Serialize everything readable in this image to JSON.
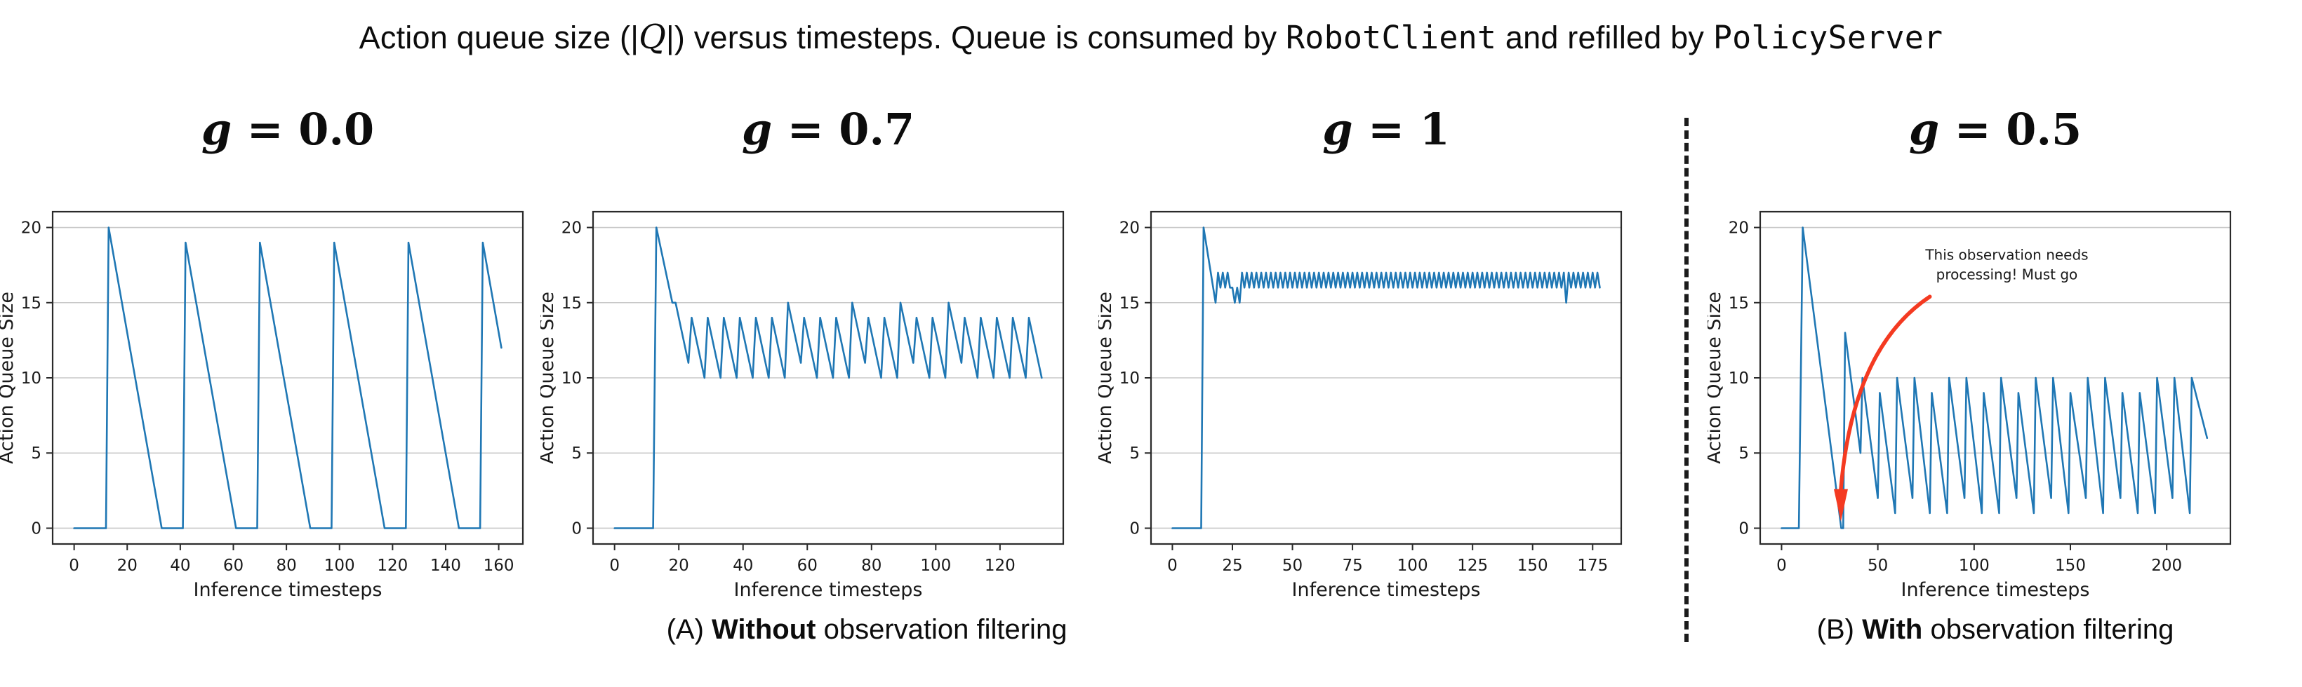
{
  "figure_title": {
    "segments": [
      {
        "t": "Action queue size (|",
        "style": "text"
      },
      {
        "t": "Q",
        "style": "script"
      },
      {
        "t": "|) versus timesteps. Queue is consumed by ",
        "style": "text"
      },
      {
        "t": "RobotClient",
        "style": "mono"
      },
      {
        "t": " and refilled by ",
        "style": "text"
      },
      {
        "t": "PolicyServer",
        "style": "mono"
      }
    ]
  },
  "captions": {
    "a": {
      "prefix": "(A) ",
      "bold": "Without",
      "rest": " observation filtering"
    },
    "b": {
      "prefix": "(B) ",
      "bold": "With",
      "rest": " observation filtering"
    }
  },
  "style": {
    "line_color": "#1f77b4",
    "grid_color": "#c9c9c9",
    "spine_color": "#2a2a2a",
    "annotation_color": "#f43a21"
  },
  "chart_data": [
    {
      "type": "line",
      "title": "g = 0.0",
      "title_var": "g",
      "title_eq": " = 0.0",
      "xlabel": "Inference timesteps",
      "ylabel": "Action Queue Size",
      "xlim": [
        -8.1,
        169.1
      ],
      "ylim": [
        -1.05,
        21.05
      ],
      "xticks": [
        0,
        20,
        40,
        60,
        80,
        100,
        120,
        140,
        160
      ],
      "yticks": [
        0,
        5,
        10,
        15,
        20
      ],
      "grid": "horizontal",
      "segments": [
        {
          "type": "points",
          "pts": [
            [
              0,
              0
            ],
            [
              12,
              0
            ],
            [
              13,
              20
            ],
            [
              33,
              0
            ],
            [
              41,
              0
            ],
            [
              42,
              19
            ],
            [
              61,
              0
            ],
            [
              69,
              0
            ],
            [
              70,
              19
            ],
            [
              89,
              0
            ],
            [
              97,
              0
            ],
            [
              98,
              19
            ],
            [
              117,
              0
            ],
            [
              125,
              0
            ],
            [
              126,
              19
            ],
            [
              145,
              0
            ],
            [
              153,
              0
            ],
            [
              154,
              19
            ],
            [
              161,
              12
            ]
          ]
        }
      ]
    },
    {
      "type": "line",
      "title": "g = 0.7",
      "title_var": "g",
      "title_eq": " = 0.7",
      "xlabel": "Inference timesteps",
      "ylabel": "Action Queue Size",
      "xlim": [
        -6.7,
        139.7
      ],
      "ylim": [
        -1.05,
        21.05
      ],
      "xticks": [
        0,
        20,
        40,
        60,
        80,
        100,
        120
      ],
      "yticks": [
        0,
        5,
        10,
        15,
        20
      ],
      "grid": "horizontal",
      "segments": [
        {
          "type": "points",
          "pts": [
            [
              0,
              0
            ],
            [
              12,
              0
            ],
            [
              13,
              20
            ],
            [
              18,
              15
            ],
            [
              19,
              15
            ],
            [
              23,
              11
            ],
            [
              24,
              14
            ],
            [
              28,
              10
            ],
            [
              29,
              14
            ],
            [
              33,
              10
            ],
            [
              34,
              14
            ],
            [
              38,
              10
            ],
            [
              39,
              14
            ],
            [
              43,
              10
            ],
            [
              44,
              14
            ],
            [
              48,
              10
            ],
            [
              49,
              14
            ],
            [
              53,
              10
            ],
            [
              54,
              15
            ],
            [
              58,
              11
            ],
            [
              59,
              14
            ],
            [
              63,
              10
            ],
            [
              64,
              14
            ],
            [
              68,
              10
            ],
            [
              69,
              14
            ],
            [
              73,
              10
            ],
            [
              74,
              15
            ],
            [
              78,
              11
            ],
            [
              79,
              14
            ],
            [
              83,
              10
            ],
            [
              84,
              14
            ],
            [
              88,
              10
            ],
            [
              89,
              15
            ],
            [
              93,
              11
            ],
            [
              94,
              14
            ],
            [
              98,
              10
            ],
            [
              99,
              14
            ],
            [
              103,
              10
            ],
            [
              104,
              15
            ],
            [
              108,
              11
            ],
            [
              109,
              14
            ],
            [
              113,
              10
            ],
            [
              114,
              14
            ],
            [
              118,
              10
            ],
            [
              119,
              14
            ],
            [
              123,
              10
            ],
            [
              124,
              14
            ],
            [
              128,
              10
            ],
            [
              129,
              14
            ],
            [
              133,
              10
            ]
          ]
        }
      ]
    },
    {
      "type": "line",
      "title": "g = 1",
      "title_var": "g",
      "title_eq": " = 1",
      "xlabel": "Inference timesteps",
      "ylabel": "Action Queue Size",
      "xlim": [
        -8.9,
        186.9
      ],
      "ylim": [
        -1.05,
        21.05
      ],
      "xticks": [
        0,
        25,
        50,
        75,
        100,
        125,
        150,
        175
      ],
      "yticks": [
        0,
        5,
        10,
        15,
        20
      ],
      "grid": "horizontal",
      "segments": [
        {
          "type": "points",
          "pts": [
            [
              0,
              0
            ],
            [
              12,
              0
            ],
            [
              13,
              20
            ],
            [
              18,
              15
            ]
          ]
        },
        {
          "type": "zigzag",
          "x0": 19,
          "x1": 24,
          "high": 17,
          "low": 16
        },
        {
          "type": "points",
          "pts": [
            [
              25,
              16
            ],
            [
              26,
              15
            ],
            [
              27,
              16
            ],
            [
              28,
              15
            ]
          ]
        },
        {
          "type": "zigzag",
          "x0": 29,
          "x1": 163,
          "high": 17,
          "low": 16
        },
        {
          "type": "points",
          "pts": [
            [
              164,
              15
            ]
          ]
        },
        {
          "type": "zigzag",
          "x0": 165,
          "x1": 178,
          "high": 17,
          "low": 16
        }
      ]
    },
    {
      "type": "line",
      "title": "g = 0.5",
      "title_var": "g",
      "title_eq": " = 0.5",
      "xlabel": "Inference timesteps",
      "ylabel": "Action Queue Size",
      "xlim": [
        -11.1,
        233.1
      ],
      "ylim": [
        -1.05,
        21.05
      ],
      "xticks": [
        0,
        50,
        100,
        150,
        200
      ],
      "yticks": [
        0,
        5,
        10,
        15,
        20
      ],
      "grid": "horizontal",
      "segments": [
        {
          "type": "points",
          "pts": [
            [
              0,
              0
            ],
            [
              9,
              0
            ],
            [
              11,
              20
            ],
            [
              31,
              0
            ],
            [
              32,
              0
            ],
            [
              33,
              13
            ],
            [
              41,
              5
            ],
            [
              42,
              10
            ],
            [
              50,
              2
            ],
            [
              51,
              9
            ],
            [
              59,
              1
            ],
            [
              60,
              10
            ],
            [
              68,
              2
            ],
            [
              69,
              10
            ],
            [
              77,
              1
            ],
            [
              78,
              9
            ],
            [
              86,
              1
            ],
            [
              87,
              10
            ],
            [
              95,
              2
            ],
            [
              96,
              10
            ],
            [
              104,
              1
            ],
            [
              105,
              9
            ],
            [
              113,
              1
            ],
            [
              114,
              10
            ],
            [
              122,
              2
            ],
            [
              123,
              9
            ],
            [
              131,
              1
            ],
            [
              132,
              10
            ],
            [
              140,
              2
            ],
            [
              141,
              10
            ],
            [
              149,
              1
            ],
            [
              150,
              9
            ],
            [
              158,
              2
            ],
            [
              159,
              10
            ],
            [
              167,
              1
            ],
            [
              168,
              10
            ],
            [
              176,
              2
            ],
            [
              177,
              9
            ],
            [
              185,
              1
            ],
            [
              186,
              9
            ],
            [
              194,
              1
            ],
            [
              195,
              10
            ],
            [
              203,
              2
            ],
            [
              204,
              10
            ],
            [
              212,
              1
            ],
            [
              213,
              10
            ],
            [
              221,
              6
            ]
          ]
        }
      ],
      "annotation": {
        "lines": [
          "This observation  needs",
          "processing! Must go"
        ],
        "line_pos": [
          [
            117,
            17.85
          ],
          [
            117,
            16.55
          ]
        ],
        "arrow_from": [
          77,
          15.4
        ],
        "arrow_ctrl": [
          37,
          12.0
        ],
        "arrow_to": [
          30.8,
          2.6
        ],
        "arrow_tip": [
          30.8,
          0.45
        ]
      }
    }
  ]
}
